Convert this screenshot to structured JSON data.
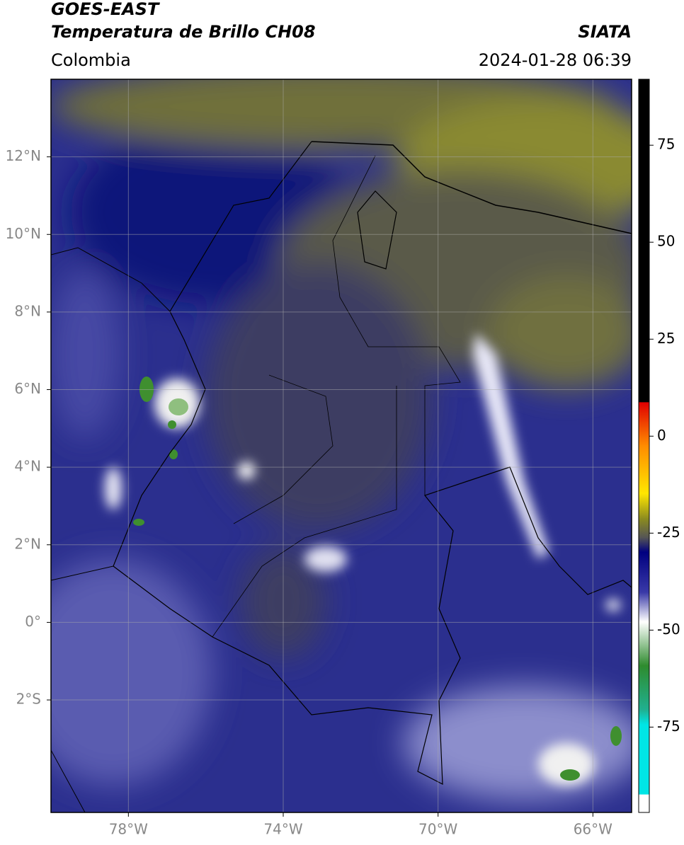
{
  "map": {
    "title": "GOES-EAST",
    "subtitle": "Temperatura de Brillo CH08",
    "source": "SIATA",
    "region": "Colombia",
    "datetime": "2024-01-28 06:39",
    "xlim": [
      -80,
      -65
    ],
    "ylim": [
      -4.9,
      14
    ],
    "xticks": [
      {
        "value": -78,
        "label": "78°W"
      },
      {
        "value": -74,
        "label": "74°W"
      },
      {
        "value": -70,
        "label": "70°W"
      },
      {
        "value": -66,
        "label": "66°W"
      }
    ],
    "yticks": [
      {
        "value": 12,
        "label": "12°N"
      },
      {
        "value": 10,
        "label": "10°N"
      },
      {
        "value": 8,
        "label": "8°N"
      },
      {
        "value": 6,
        "label": "6°N"
      },
      {
        "value": 4,
        "label": "4°N"
      },
      {
        "value": 2,
        "label": "2°N"
      },
      {
        "value": 0,
        "label": "0°"
      },
      {
        "value": -2,
        "label": "2°S"
      }
    ],
    "grid": true,
    "colorbar": {
      "lim": [
        -97,
        92
      ],
      "ticks": [
        75,
        50,
        25,
        0,
        -25,
        -50,
        -75
      ]
    }
  }
}
